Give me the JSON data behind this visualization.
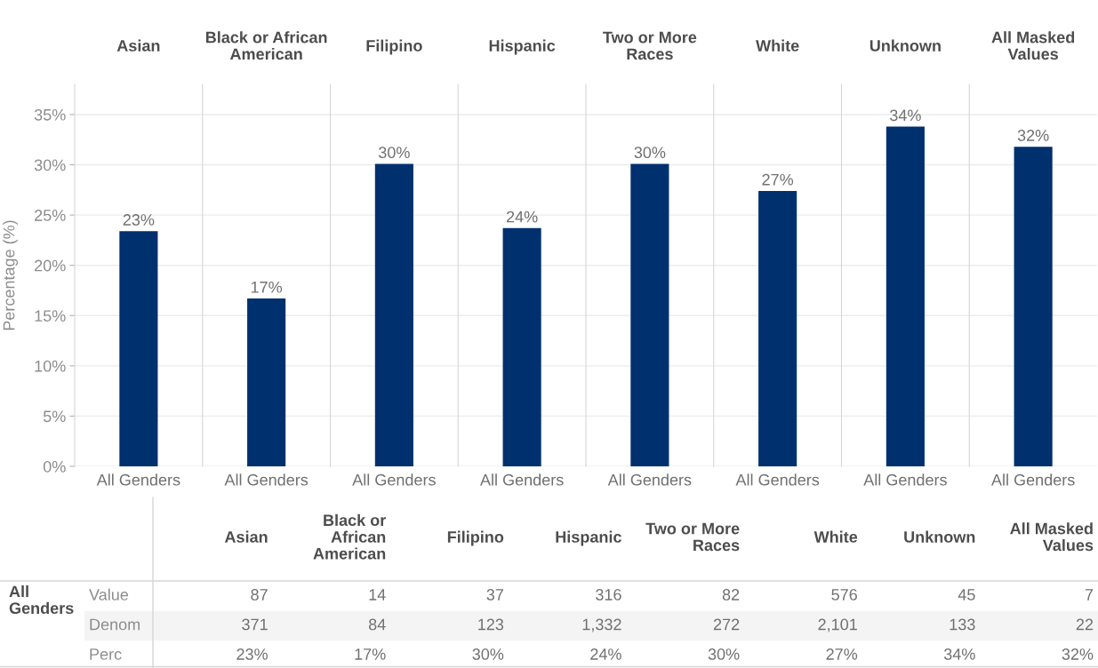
{
  "chart_data": [
    {
      "type": "bar",
      "title": "Asian",
      "categories": [
        "All Genders"
      ],
      "values": [
        23.4
      ],
      "value_labels": [
        "23%"
      ],
      "color": "#00306e",
      "ylabel": "Percentage (%)",
      "ylim": [
        0,
        38
      ],
      "yticks": [
        {
          "value": 0,
          "label": "0%"
        },
        {
          "value": 5,
          "label": "5%"
        },
        {
          "value": 10,
          "label": "10%"
        },
        {
          "value": 15,
          "label": "15%"
        },
        {
          "value": 20,
          "label": "20%"
        },
        {
          "value": 25,
          "label": "25%"
        },
        {
          "value": 30,
          "label": "30%"
        },
        {
          "value": 35,
          "label": "35%"
        }
      ],
      "grid": "y"
    },
    {
      "type": "bar",
      "title": "Black or African\nAmerican",
      "categories": [
        "All Genders"
      ],
      "values": [
        16.7
      ],
      "value_labels": [
        "17%"
      ],
      "color": "#00306e",
      "ylim": [
        0,
        38
      ],
      "yticks": [
        0,
        5,
        10,
        15,
        20,
        25,
        30,
        35
      ],
      "grid": "y",
      "tick_labels": "x"
    },
    {
      "type": "bar",
      "title": "Filipino",
      "categories": [
        "All Genders"
      ],
      "values": [
        30.1
      ],
      "value_labels": [
        "30%"
      ],
      "color": "#00306e",
      "ylim": [
        0,
        38
      ],
      "yticks": [
        0,
        5,
        10,
        15,
        20,
        25,
        30,
        35
      ],
      "grid": "y",
      "tick_labels": "x"
    },
    {
      "type": "bar",
      "title": "Hispanic",
      "categories": [
        "All Genders"
      ],
      "values": [
        23.7
      ],
      "value_labels": [
        "24%"
      ],
      "color": "#00306e",
      "ylim": [
        0,
        38
      ],
      "yticks": [
        0,
        5,
        10,
        15,
        20,
        25,
        30,
        35
      ],
      "grid": "y",
      "tick_labels": "x"
    },
    {
      "type": "bar",
      "title": "Two or More\nRaces",
      "categories": [
        "All Genders"
      ],
      "values": [
        30.1
      ],
      "value_labels": [
        "30%"
      ],
      "color": "#00306e",
      "ylim": [
        0,
        38
      ],
      "yticks": [
        0,
        5,
        10,
        15,
        20,
        25,
        30,
        35
      ],
      "grid": "y",
      "tick_labels": "x"
    },
    {
      "type": "bar",
      "title": "White",
      "categories": [
        "All Genders"
      ],
      "values": [
        27.4
      ],
      "value_labels": [
        "27%"
      ],
      "color": "#00306e",
      "ylim": [
        0,
        38
      ],
      "yticks": [
        0,
        5,
        10,
        15,
        20,
        25,
        30,
        35
      ],
      "grid": "y",
      "tick_labels": "x"
    },
    {
      "type": "bar",
      "title": "Unknown",
      "categories": [
        "All Genders"
      ],
      "values": [
        33.8
      ],
      "value_labels": [
        "34%"
      ],
      "color": "#00306e",
      "ylim": [
        0,
        38
      ],
      "yticks": [
        0,
        5,
        10,
        15,
        20,
        25,
        30,
        35
      ],
      "grid": "y",
      "tick_labels": "x"
    },
    {
      "type": "bar",
      "title": "All Masked\nValues",
      "categories": [
        "All Genders"
      ],
      "values": [
        31.8
      ],
      "value_labels": [
        "32%"
      ],
      "color": "#00306e",
      "ylim": [
        0,
        38
      ],
      "yticks": [
        0,
        5,
        10,
        15,
        20,
        25,
        30,
        35
      ],
      "grid": "y",
      "tick_labels": "x"
    },
    {
      "type": "other",
      "categories": [
        "Asian",
        "Black or\nAfrican\nAmerican",
        "Filipino",
        "Hispanic",
        "Two or More\nRaces",
        "White",
        "Unknown",
        "All Masked\nValues"
      ],
      "y_categories": [
        "Value",
        "Denom",
        "Perc"
      ],
      "ylabel": "All\nGenders",
      "cell_labels": [
        [
          "87",
          "14",
          "37",
          "316",
          "82",
          "576",
          "45",
          "7"
        ],
        [
          "371",
          "84",
          "123",
          "1,332",
          "272",
          "2,101",
          "133",
          "22"
        ],
        [
          "23%",
          "17%",
          "30%",
          "24%",
          "30%",
          "27%",
          "34%",
          "32%"
        ]
      ]
    }
  ]
}
